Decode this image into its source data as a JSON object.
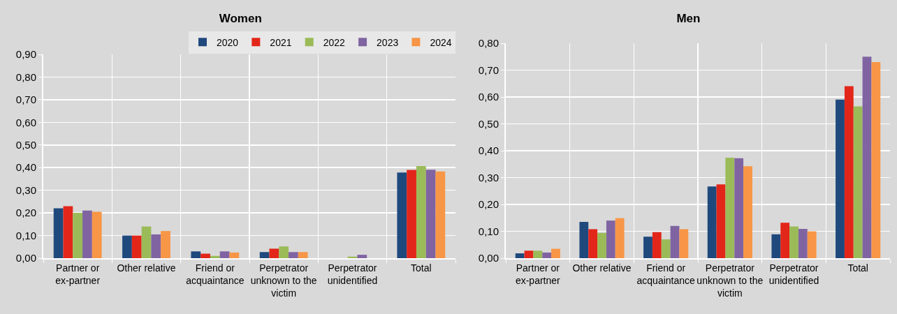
{
  "chart_data": [
    {
      "type": "bar",
      "title": "Women",
      "categories": [
        "Partner or ex-partner",
        "Other relative",
        "Friend or acquaintance",
        "Perpetrator unknown to the victim",
        "Perpetrator unidentified",
        "Total"
      ],
      "series": [
        {
          "name": "2020",
          "color": "#1f497d",
          "values": [
            0.22,
            0.1,
            0.03,
            0.027,
            null,
            0.378
          ]
        },
        {
          "name": "2021",
          "color": "#e3261a",
          "values": [
            0.23,
            0.1,
            0.02,
            0.042,
            null,
            0.39
          ]
        },
        {
          "name": "2022",
          "color": "#9bbb59",
          "values": [
            0.2,
            0.14,
            0.01,
            0.052,
            0.007,
            0.407
          ]
        },
        {
          "name": "2023",
          "color": "#8064a2",
          "values": [
            0.21,
            0.105,
            0.03,
            0.027,
            0.015,
            0.391
          ]
        },
        {
          "name": "2024",
          "color": "#f79646",
          "values": [
            0.205,
            0.12,
            0.025,
            0.027,
            null,
            0.383
          ]
        }
      ],
      "ylim": [
        0,
        0.9
      ],
      "yticks": [
        {
          "value": 0,
          "label": "0,00"
        },
        {
          "value": 0.1,
          "label": "0,10"
        },
        {
          "value": 0.2,
          "label": "0,20"
        },
        {
          "value": 0.3,
          "label": "0,30"
        },
        {
          "value": 0.4,
          "label": "0,40"
        },
        {
          "value": 0.5,
          "label": "0,50"
        },
        {
          "value": 0.6,
          "label": "0,60"
        },
        {
          "value": 0.7,
          "label": "0,70"
        },
        {
          "value": 0.8,
          "label": "0,80"
        },
        {
          "value": 0.9,
          "label": "0,90"
        }
      ],
      "grid": true,
      "legend": "top right"
    },
    {
      "type": "bar",
      "title": "Men",
      "categories": [
        "Partner or ex-partner",
        "Other relative",
        "Friend or acquaintance",
        "Perpetrator unknown to the victim",
        "Perpetrator unidentified",
        "Total"
      ],
      "series": [
        {
          "color": "#1f497d",
          "values": [
            0.018,
            0.135,
            0.08,
            0.267,
            0.089,
            0.59
          ]
        },
        {
          "color": "#e3261a",
          "values": [
            0.028,
            0.108,
            0.097,
            0.275,
            0.132,
            0.64
          ]
        },
        {
          "color": "#9bbb59",
          "values": [
            0.028,
            0.094,
            0.07,
            0.374,
            0.118,
            0.565
          ]
        },
        {
          "color": "#8064a2",
          "values": [
            0.021,
            0.14,
            0.12,
            0.372,
            0.109,
            0.75
          ]
        },
        {
          "color": "#f79646",
          "values": [
            0.035,
            0.149,
            0.108,
            0.342,
            0.1,
            0.73
          ]
        }
      ],
      "ylim": [
        0,
        0.8
      ],
      "yticks": [
        {
          "value": 0,
          "label": "0,00"
        },
        {
          "value": 0.1,
          "label": "0,10"
        },
        {
          "value": 0.2,
          "label": "0,20"
        },
        {
          "value": 0.3,
          "label": "0,30"
        },
        {
          "value": 0.4,
          "label": "0,40"
        },
        {
          "value": 0.5,
          "label": "0,50"
        },
        {
          "value": 0.6,
          "label": "0,60"
        },
        {
          "value": 0.7,
          "label": "0,70"
        },
        {
          "value": 0.8,
          "label": "0,80"
        }
      ],
      "grid": true
    }
  ]
}
